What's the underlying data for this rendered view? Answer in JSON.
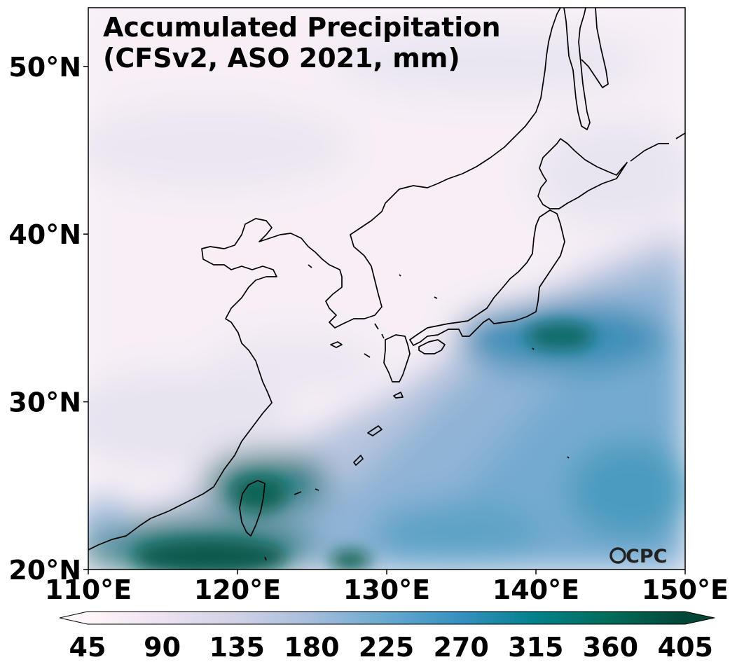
{
  "title": {
    "line1": "Accumulated Precipitation",
    "line2": "(CFSv2, ASO 2021, mm)"
  },
  "logo": {
    "text": "CPC"
  },
  "map": {
    "projection": "PlateCarree",
    "lon_range": [
      110,
      150
    ],
    "lat_range": [
      20,
      53.5
    ],
    "lon_ticks": [
      {
        "value": 110,
        "label": "110°E"
      },
      {
        "value": 120,
        "label": "120°E"
      },
      {
        "value": 130,
        "label": "130°E"
      },
      {
        "value": 140,
        "label": "140°E"
      },
      {
        "value": 150,
        "label": "150°E"
      }
    ],
    "lat_ticks": [
      {
        "value": 20,
        "label": "20°N"
      },
      {
        "value": 30,
        "label": "30°N"
      },
      {
        "value": 40,
        "label": "40°N"
      },
      {
        "value": 50,
        "label": "50°N"
      }
    ]
  },
  "colorbar": {
    "colormap": "PuBuGn",
    "min": 45,
    "max": 405,
    "extend": "both",
    "colors": [
      "#fff7fb",
      "#ece2f0",
      "#d0d1e6",
      "#a6bddb",
      "#67a9cf",
      "#3690c0",
      "#02818a",
      "#016c59",
      "#014636"
    ],
    "tick_labels": [
      "45",
      "90",
      "135",
      "180",
      "225",
      "270",
      "315",
      "360",
      "405"
    ]
  }
}
